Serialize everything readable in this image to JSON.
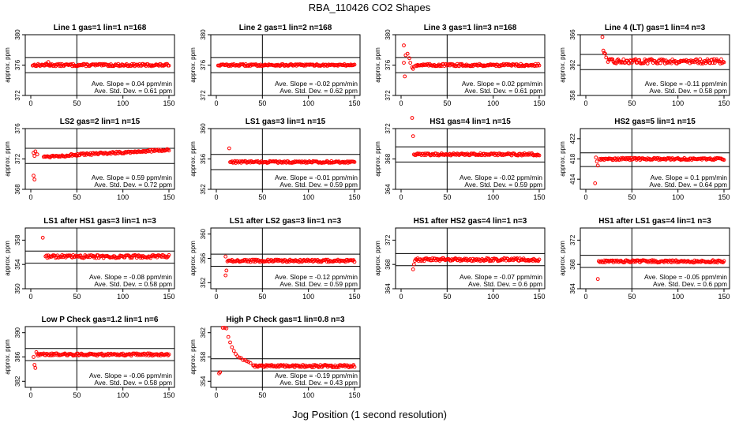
{
  "title": "RBA_110426  CO2 Shapes",
  "xlabel": "Jog Position (1 second resolution)",
  "colors": {
    "points": "#ff0000",
    "axes": "#000000"
  },
  "chart_data": [
    {
      "type": "scatter",
      "title": "Line 1 gas=1 lin=1 n=168",
      "ylabel": "approx. ppm",
      "xlim": [
        0,
        150
      ],
      "ylim": [
        372,
        380
      ],
      "yticks": [
        372,
        376,
        380
      ],
      "xticks": [
        0,
        50,
        100,
        150
      ],
      "hlines": [
        377,
        375
      ],
      "vline": 50,
      "slope_text": "Ave. Slope = 0.04 ppm/min",
      "sd_text": "Ave. Std. Dev. = 0.61 ppm",
      "x_start": 2,
      "base": 376,
      "early": [
        [
          17,
          376.2
        ],
        [
          19,
          376.4
        ],
        [
          21,
          376.1
        ]
      ],
      "noise": 0.15
    },
    {
      "type": "scatter",
      "title": "Line 2 gas=1 lin=2 n=168",
      "ylabel": "approx. ppm",
      "xlim": [
        0,
        150
      ],
      "ylim": [
        372,
        380
      ],
      "yticks": [
        372,
        376,
        380
      ],
      "xticks": [
        0,
        50,
        100,
        150
      ],
      "hlines": [
        377,
        375
      ],
      "vline": 50,
      "slope_text": "Ave. Slope = -0.02 ppm/min",
      "sd_text": "Ave. Std. Dev. = 0.62 ppm",
      "x_start": 2,
      "base": 376,
      "early": [],
      "noise": 0.12
    },
    {
      "type": "scatter",
      "title": "Line 3 gas=1 lin=3 n=168",
      "ylabel": "approx. ppm",
      "xlim": [
        0,
        150
      ],
      "ylim": [
        372,
        380
      ],
      "yticks": [
        372,
        376,
        380
      ],
      "xticks": [
        0,
        50,
        100,
        150
      ],
      "hlines": [
        377,
        375
      ],
      "vline": 50,
      "slope_text": "Ave. Slope = 0.02 ppm/min",
      "sd_text": "Ave. Std. Dev. = 0.61 ppm",
      "x_start": 16,
      "base": 376,
      "early": [
        [
          3,
          378.6
        ],
        [
          3,
          376.3
        ],
        [
          4,
          374.5
        ],
        [
          5,
          377.3
        ],
        [
          7,
          377.5
        ],
        [
          9,
          376.9
        ],
        [
          10,
          376.3
        ],
        [
          12,
          375.7
        ],
        [
          13,
          375.5
        ],
        [
          14,
          375.8
        ]
      ],
      "noise": 0.15
    },
    {
      "type": "scatter",
      "title": "Line 4 (LT) gas=1 lin=4 n=3",
      "ylabel": "approx. ppm",
      "xlim": [
        0,
        150
      ],
      "ylim": [
        358,
        366
      ],
      "yticks": [
        358,
        362,
        366
      ],
      "xticks": [
        0,
        50,
        100,
        150
      ],
      "hlines": [
        363.4,
        361.4
      ],
      "vline": 50,
      "slope_text": "Ave. Slope = -0.11 ppm/min",
      "sd_text": "Ave. Std. Dev. = 0.58 ppm",
      "x_start": 24,
      "base": 362.5,
      "early": [
        [
          18,
          365.7
        ],
        [
          19,
          363.9
        ],
        [
          20,
          363.6
        ],
        [
          21,
          363.5
        ],
        [
          22,
          363.0
        ]
      ],
      "noise": 0.3
    },
    {
      "type": "scatter",
      "title": "LS2 gas=2 lin=1 n=15",
      "ylabel": "approx. ppm",
      "xlim": [
        0,
        150
      ],
      "ylim": [
        368,
        376
      ],
      "yticks": [
        368,
        372,
        376
      ],
      "xticks": [
        0,
        50,
        100,
        150
      ],
      "hlines": [
        373.4,
        371.4
      ],
      "vline": 50,
      "slope_text": "Ave. Slope = 0.59 ppm/min",
      "sd_text": "Ave. Std. Dev. = 0.72 ppm",
      "x_start": 14,
      "base": 372.3,
      "base_end": 373.2,
      "early": [
        [
          3,
          372.8
        ],
        [
          4,
          372.4
        ],
        [
          5,
          373.0
        ],
        [
          7,
          372.6
        ],
        [
          3,
          369.8
        ],
        [
          4,
          369.3
        ]
      ],
      "noise": 0.15
    },
    {
      "type": "scatter",
      "title": "LS1 gas=3 lin=1 n=15",
      "ylabel": "approx. ppm",
      "xlim": [
        0,
        150
      ],
      "ylim": [
        352,
        360
      ],
      "yticks": [
        352,
        356,
        360
      ],
      "xticks": [
        0,
        50,
        100,
        150
      ],
      "hlines": [
        356.6,
        354.6
      ],
      "vline": 50,
      "slope_text": "Ave. Slope = -0.01 ppm/min",
      "sd_text": "Ave. Std. Dev. = 0.59 ppm",
      "x_start": 15,
      "base": 355.6,
      "early": [
        [
          14,
          357.4
        ]
      ],
      "noise": 0.12
    },
    {
      "type": "scatter",
      "title": "HS1 gas=4 lin=1 n=15",
      "ylabel": "approx. ppm",
      "xlim": [
        0,
        150
      ],
      "ylim": [
        364,
        372
      ],
      "yticks": [
        364,
        368,
        372
      ],
      "xticks": [
        0,
        50,
        100,
        150
      ],
      "hlines": [
        369.6,
        367.6
      ],
      "vline": 50,
      "slope_text": "Ave. Slope = -0.02 ppm/min",
      "sd_text": "Ave. Std. Dev. = 0.59 ppm",
      "x_start": 14,
      "base": 368.6,
      "early": [
        [
          12,
          373.4
        ],
        [
          13,
          371.0
        ]
      ],
      "noise": 0.15
    },
    {
      "type": "scatter",
      "title": "HS2 gas=5 lin=1 n=15",
      "ylabel": "approx. ppm",
      "xlim": [
        0,
        150
      ],
      "ylim": [
        412,
        424
      ],
      "yticks": [
        414,
        418,
        422
      ],
      "xticks": [
        0,
        50,
        100,
        150
      ],
      "hlines": [
        419.2,
        416.5
      ],
      "vline": 50,
      "slope_text": "Ave. Slope = 0.1 ppm/min",
      "sd_text": "Ave. Std. Dev. = 0.64 ppm",
      "x_start": 15,
      "base": 418.0,
      "early": [
        [
          10,
          413.2
        ],
        [
          11,
          418.3
        ],
        [
          12,
          417.5
        ],
        [
          13,
          416.7
        ]
      ],
      "noise": 0.2
    },
    {
      "type": "scatter",
      "title": "LS1 after HS1 gas=3 lin=1 n=3",
      "ylabel": "approx. ppm",
      "xlim": [
        0,
        150
      ],
      "ylim": [
        350,
        360
      ],
      "yticks": [
        350,
        354,
        358
      ],
      "xticks": [
        0,
        50,
        100,
        150
      ],
      "hlines": [
        356.2,
        354.2
      ],
      "vline": 50,
      "slope_text": "Ave. Slope = -0.08 ppm/min",
      "sd_text": "Ave. Std. Dev. = 0.58 ppm",
      "x_start": 16,
      "base": 355.3,
      "early": [
        [
          13,
          358.4
        ]
      ],
      "noise": 0.25
    },
    {
      "type": "scatter",
      "title": "LS1 after LS2 gas=3 lin=1 n=3",
      "ylabel": "approx. ppm",
      "xlim": [
        0,
        150
      ],
      "ylim": [
        351,
        361
      ],
      "yticks": [
        352,
        356,
        360
      ],
      "xticks": [
        0,
        50,
        100,
        150
      ],
      "hlines": [
        356.7,
        354.7
      ],
      "vline": 50,
      "slope_text": "Ave. Slope = -0.12 ppm/min",
      "sd_text": "Ave. Std. Dev. = 0.59 ppm",
      "x_start": 13,
      "base": 355.6,
      "early": [
        [
          10,
          353.2
        ],
        [
          11,
          354.0
        ],
        [
          12,
          355.5
        ],
        [
          10,
          356.3
        ]
      ],
      "noise": 0.2
    },
    {
      "type": "scatter",
      "title": "HS1 after HS2 gas=4 lin=1 n=3",
      "ylabel": "approx. ppm",
      "xlim": [
        0,
        150
      ],
      "ylim": [
        364,
        374
      ],
      "yticks": [
        364,
        368,
        372
      ],
      "xticks": [
        0,
        50,
        100,
        150
      ],
      "hlines": [
        369.8,
        367.8
      ],
      "vline": 50,
      "slope_text": "Ave. Slope = -0.07 ppm/min",
      "sd_text": "Ave. Std. Dev. = 0.6 ppm",
      "x_start": 16,
      "base": 368.8,
      "early": [
        [
          13,
          367.2
        ],
        [
          14,
          368.0
        ],
        [
          15,
          368.6
        ]
      ],
      "noise": 0.25
    },
    {
      "type": "scatter",
      "title": "HS1 after LS1 gas=4 lin=1 n=3",
      "ylabel": "approx. ppm",
      "xlim": [
        0,
        150
      ],
      "ylim": [
        364,
        374
      ],
      "yticks": [
        364,
        368,
        372
      ],
      "xticks": [
        0,
        50,
        100,
        150
      ],
      "hlines": [
        369.5,
        367.5
      ],
      "vline": 50,
      "slope_text": "Ave. Slope = -0.05 ppm/min",
      "sd_text": "Ave. Std. Dev. = 0.6 ppm",
      "x_start": 14,
      "base": 368.5,
      "early": [
        [
          13,
          365.6
        ]
      ],
      "noise": 0.2
    },
    {
      "type": "scatter",
      "title": "Low P Check gas=1.2 lin=1 n=6",
      "ylabel": "approx. ppm",
      "xlim": [
        0,
        150
      ],
      "ylim": [
        381,
        391
      ],
      "yticks": [
        382,
        386,
        390
      ],
      "xticks": [
        0,
        50,
        100,
        150
      ],
      "hlines": [
        387.4,
        385.4
      ],
      "vline": 50,
      "slope_text": "Ave. Slope = -0.06 ppm/min",
      "sd_text": "Ave. Std. Dev. = 0.58 ppm",
      "x_start": 7,
      "base": 386.4,
      "early": [
        [
          3,
          386.0
        ],
        [
          4,
          384.7
        ],
        [
          5,
          384.2
        ],
        [
          6,
          386.8
        ]
      ],
      "noise": 0.2
    },
    {
      "type": "scatter",
      "title": "High P Check gas=1 lin=0.8 n=3",
      "ylabel": "approx. ppm",
      "xlim": [
        0,
        150
      ],
      "ylim": [
        353,
        363
      ],
      "yticks": [
        354,
        358,
        362
      ],
      "xticks": [
        0,
        50,
        100,
        150
      ],
      "hlines": [
        357.7,
        355.7
      ],
      "vline": 50,
      "slope_text": "Ave. Slope = -0.19 ppm/min",
      "sd_text": "Ave. Std. Dev. = 0.43 ppm",
      "x_start": 40,
      "base": 356.5,
      "early": [
        [
          3,
          355.3
        ],
        [
          4,
          355.5
        ],
        [
          7,
          362.8
        ],
        [
          9,
          362.8
        ],
        [
          11,
          362.7
        ],
        [
          13,
          361.3
        ],
        [
          15,
          360.4
        ],
        [
          17,
          359.6
        ],
        [
          19,
          359.0
        ],
        [
          21,
          358.5
        ],
        [
          23,
          358.1
        ],
        [
          25,
          357.9
        ],
        [
          27,
          357.8
        ],
        [
          29,
          357.5
        ],
        [
          31,
          357.5
        ],
        [
          33,
          357.3
        ],
        [
          35,
          357.2
        ],
        [
          37,
          357.0
        ]
      ],
      "noise": 0.2
    }
  ]
}
